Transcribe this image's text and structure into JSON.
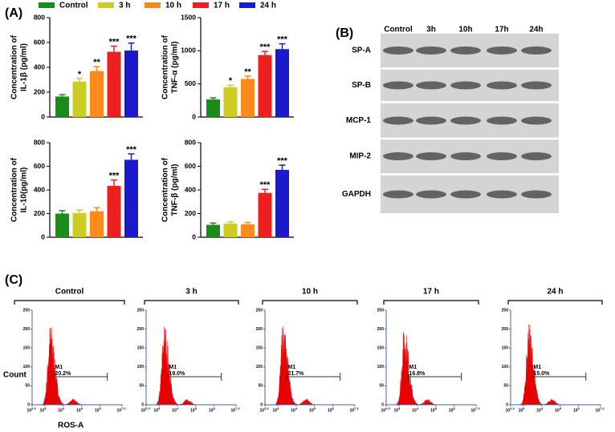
{
  "panel_labels": {
    "a": "(A)",
    "b": "(B)",
    "c": "(C)"
  },
  "legend": [
    {
      "name": "Control",
      "color": "#1a8c1a"
    },
    {
      "name": "3 h",
      "color": "#cccc22"
    },
    {
      "name": "10 h",
      "color": "#ff8a1c"
    },
    {
      "name": "17 h",
      "color": "#ee1f1f"
    },
    {
      "name": "24 h",
      "color": "#1a1acc"
    }
  ],
  "chart_data": [
    {
      "type": "bar",
      "ylabel": [
        "Concentration of",
        "IL-1β (pg/ml)"
      ],
      "categories": [
        null,
        null,
        null,
        null,
        null
      ],
      "values": [
        165,
        285,
        370,
        525,
        535
      ],
      "errors": [
        15,
        25,
        35,
        45,
        60
      ],
      "annotations": [
        null,
        "*",
        "**",
        "***",
        "***"
      ],
      "ylim": [
        0,
        800
      ],
      "yticks": [
        0,
        200,
        400,
        600,
        800
      ]
    },
    {
      "type": "bar",
      "ylabel": [
        "Concentration of",
        "TNF-α (pg/ml)"
      ],
      "categories": [
        null,
        null,
        null,
        null,
        null
      ],
      "values": [
        265,
        450,
        575,
        935,
        1025
      ],
      "errors": [
        25,
        30,
        40,
        55,
        80
      ],
      "annotations": [
        null,
        "*",
        "**",
        "***",
        "***"
      ],
      "ylim": [
        0,
        1500
      ],
      "yticks": [
        0,
        500,
        1000,
        1500
      ]
    },
    {
      "type": "bar",
      "ylabel": [
        "Concentration of",
        "IL-10(pg/ml)"
      ],
      "categories": [
        null,
        null,
        null,
        null,
        null
      ],
      "values": [
        200,
        205,
        220,
        435,
        655
      ],
      "errors": [
        25,
        25,
        30,
        50,
        50
      ],
      "annotations": [
        null,
        null,
        null,
        "***",
        "***"
      ],
      "ylim": [
        0,
        800
      ],
      "yticks": [
        0,
        200,
        400,
        600,
        800
      ]
    },
    {
      "type": "bar",
      "ylabel": [
        "Concentration of",
        "TNF-β (pg/ml)"
      ],
      "categories": [
        null,
        null,
        null,
        null,
        null
      ],
      "values": [
        105,
        115,
        110,
        375,
        570
      ],
      "errors": [
        15,
        15,
        15,
        30,
        40
      ],
      "annotations": [
        null,
        null,
        null,
        "***",
        "***"
      ],
      "ylim": [
        0,
        800
      ],
      "yticks": [
        0,
        200,
        400,
        600,
        800
      ]
    }
  ],
  "blot": {
    "columns": [
      "Control",
      "3h",
      "10h",
      "17h",
      "24h"
    ],
    "rows": [
      "SP-A",
      "SP-B",
      "MCP-1",
      "MIP-2",
      "GAPDH"
    ]
  },
  "flow": {
    "ylabel": "Count",
    "xlabel": "ROS-A",
    "ylim": [
      0,
      250
    ],
    "yticks": [
      0,
      50,
      100,
      150,
      200,
      250
    ],
    "xlim": [
      2.3,
      7.2
    ],
    "xticks": [
      {
        "value": 2.3,
        "label": "10",
        "exp": "2.3"
      },
      {
        "value": 3,
        "label": "10",
        "exp": "3"
      },
      {
        "value": 4,
        "label": "10",
        "exp": "4"
      },
      {
        "value": 5,
        "label": "10",
        "exp": "5"
      },
      {
        "value": 6,
        "label": "10",
        "exp": "6"
      },
      {
        "value": 7.2,
        "label": "10",
        "exp": "7.2"
      }
    ],
    "panels": [
      {
        "title": "Control",
        "gate": {
          "name": "M1",
          "range": [
            3.5,
            6.4
          ],
          "percent": "20.2%"
        }
      },
      {
        "title": "3 h",
        "gate": {
          "name": "M1",
          "range": [
            3.5,
            6.4
          ],
          "percent": "19.0%"
        }
      },
      {
        "title": "10 h",
        "gate": {
          "name": "M1",
          "range": [
            3.5,
            6.4
          ],
          "percent": "21.7%"
        }
      },
      {
        "title": "17 h",
        "gate": {
          "name": "M1",
          "range": [
            3.5,
            6.4
          ],
          "percent": "16.8%"
        }
      },
      {
        "title": "24 h",
        "gate": {
          "name": "M1",
          "range": [
            3.5,
            6.4
          ],
          "percent": "15.0%"
        }
      }
    ]
  }
}
